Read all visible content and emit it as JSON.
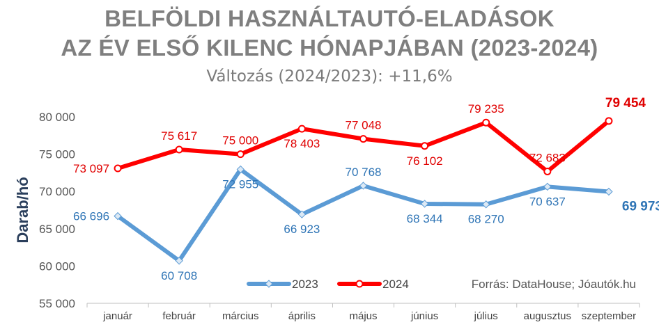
{
  "title_line1": "BELFÖLDI HASZNÁLTAUTÓ-ELADÁSOK",
  "title_line2": "AZ ÉV ELSŐ KILENC HÓNAPJÁBAN (2023-2024)",
  "subtitle": "Változás (2024/2023): +11,6%",
  "source": "Forrás: DataHouse; Jóautók.hu",
  "chart_data": {
    "type": "line",
    "ylabel": "Darab/hó",
    "ylim": [
      55000,
      80000
    ],
    "yticks": [
      55000,
      60000,
      65000,
      70000,
      75000,
      80000
    ],
    "ytick_labels": [
      "55 000",
      "60 000",
      "65 000",
      "70 000",
      "75 000",
      "80 000"
    ],
    "categories": [
      "január",
      "február",
      "március",
      "április",
      "május",
      "június",
      "július",
      "augusztus",
      "szeptember"
    ],
    "series": [
      {
        "name": "2023",
        "color": "#5b9bd5",
        "label_color": "#2f75b6",
        "values": [
          66696,
          60708,
          72955,
          66923,
          70768,
          68344,
          68270,
          70637,
          69973
        ],
        "labels": [
          "66 696",
          "60 708",
          "72 955",
          "66 923",
          "70 768",
          "68 344",
          "68 270",
          "70 637",
          "69 973"
        ]
      },
      {
        "name": "2024",
        "color": "#ff0000",
        "label_color": "#e00000",
        "values": [
          73097,
          75617,
          75000,
          78403,
          77048,
          76102,
          79235,
          72683,
          79454
        ],
        "labels": [
          "73 097",
          "75 617",
          "75 000",
          "78 403",
          "77 048",
          "76 102",
          "79 235",
          "72 683",
          "79 454"
        ]
      }
    ],
    "legend": "bottom-right"
  }
}
